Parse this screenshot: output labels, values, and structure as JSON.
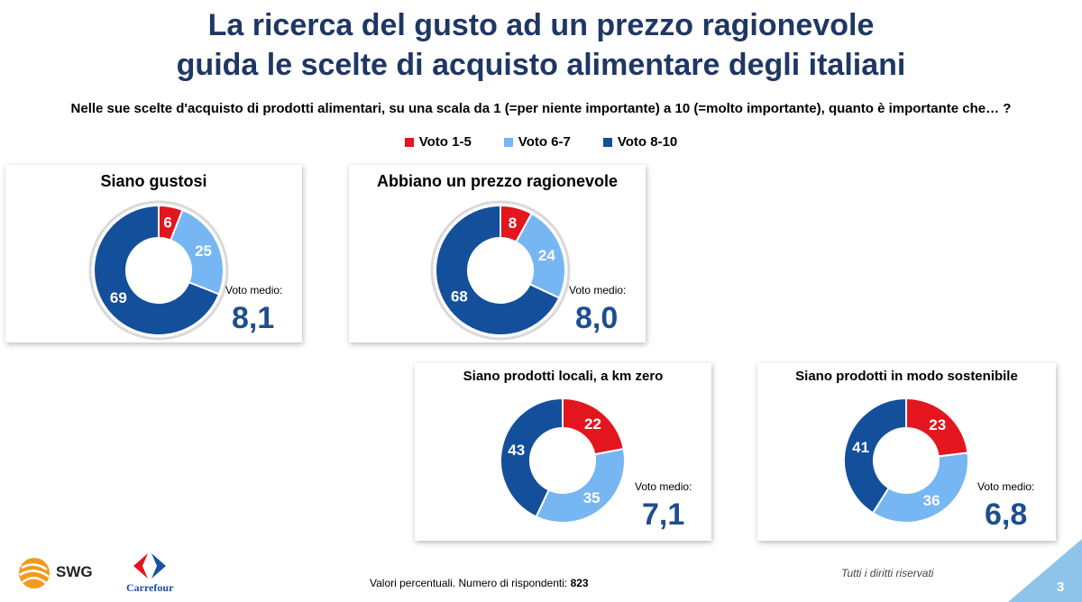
{
  "title_line1": "La ricerca del gusto ad un prezzo ragionevole",
  "title_line2": "guida le scelte di acquisto alimentare degli italiani",
  "question": "Nelle sue scelte d'acquisto di prodotti alimentari, su una scala da 1 (=per niente importante) a 10 (=molto importante), quanto è importante che… ?",
  "legend": [
    {
      "label": "Voto 1-5",
      "color": "#e3151f"
    },
    {
      "label": "Voto 6-7",
      "color": "#76b6f2"
    },
    {
      "label": "Voto 8-10",
      "color": "#144f9b"
    }
  ],
  "voto_medio_label": "Voto medio:",
  "chart_data": [
    {
      "type": "pie",
      "title": "Siano gustosi",
      "categories": [
        "Voto 1-5",
        "Voto 6-7",
        "Voto 8-10"
      ],
      "values": [
        6,
        25,
        69
      ],
      "voto_medio": "8,1"
    },
    {
      "type": "pie",
      "title": "Abbiano un prezzo ragionevole",
      "categories": [
        "Voto 1-5",
        "Voto 6-7",
        "Voto 8-10"
      ],
      "values": [
        8,
        24,
        68
      ],
      "voto_medio": "8,0"
    },
    {
      "type": "pie",
      "title": "Siano prodotti locali, a km zero",
      "categories": [
        "Voto 1-5",
        "Voto 6-7",
        "Voto 8-10"
      ],
      "values": [
        22,
        35,
        43
      ],
      "voto_medio": "7,1"
    },
    {
      "type": "pie",
      "title": "Siano prodotti in modo sostenibile",
      "categories": [
        "Voto 1-5",
        "Voto 6-7",
        "Voto 8-10"
      ],
      "values": [
        23,
        36,
        41
      ],
      "voto_medio": "6,8"
    }
  ],
  "footer_note": "Valori percentuali.  Numero di rispondenti: ",
  "respondents": "823",
  "rights": "Tutti i diritti riservati",
  "page_number": "3",
  "logo_swg": "SWG",
  "logo_carrefour": "Carrefour"
}
